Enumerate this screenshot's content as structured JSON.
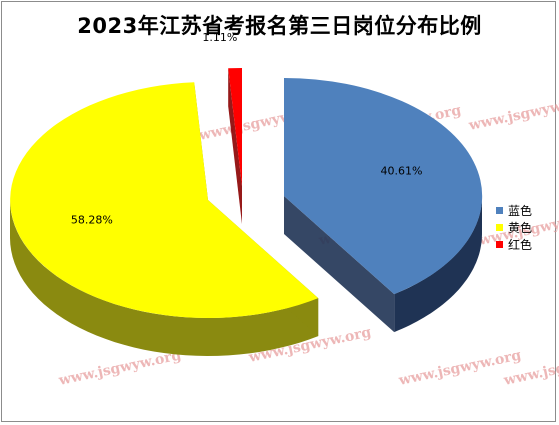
{
  "chart_data": {
    "type": "pie",
    "title": "2023年江苏省考报名第三日岗位分布比例",
    "series": [
      {
        "name": "蓝色",
        "value": 40.61,
        "label": "40.61%",
        "color": "#4f81bd",
        "side": "#1f3354"
      },
      {
        "name": "黄色",
        "value": 58.28,
        "label": "58.28%",
        "color": "#ffff00",
        "side": "#8a8a10"
      },
      {
        "name": "红色",
        "value": 1.11,
        "label": "1.11%",
        "color": "#ff0000",
        "side": "#8b0000"
      }
    ],
    "legend_position": "right"
  },
  "watermark": "www.jsgwyw.org"
}
